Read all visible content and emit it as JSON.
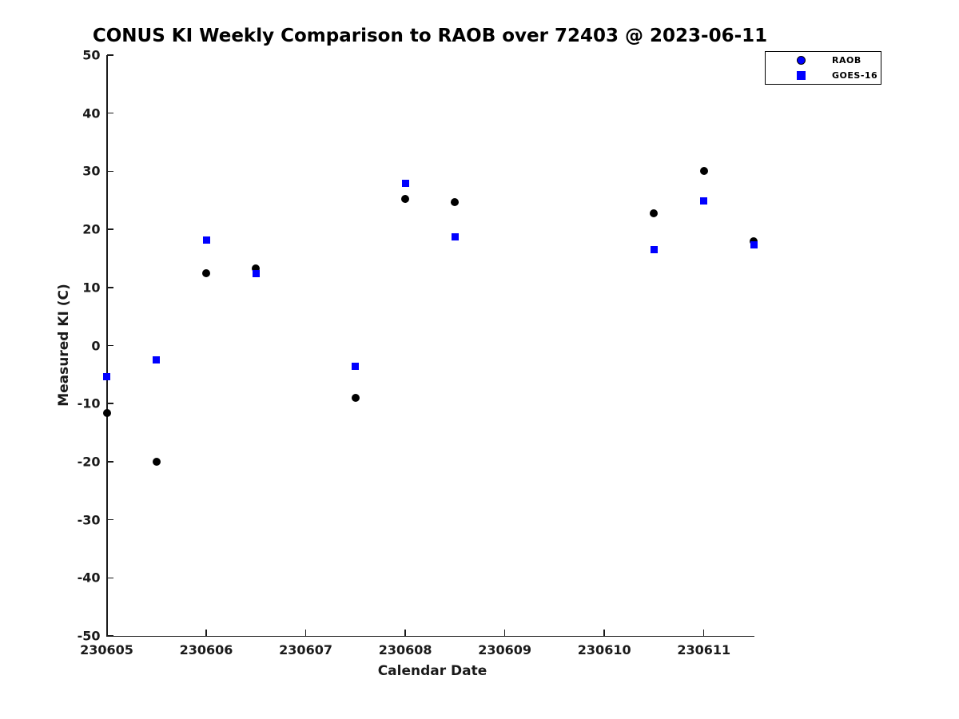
{
  "chart_data": {
    "type": "scatter",
    "title": "CONUS KI Weekly Comparison to RAOB over 72403 @ 2023-06-11",
    "xlabel": "Calendar Date",
    "ylabel": "Measured KI (C)",
    "xlim": [
      230605,
      230611.5
    ],
    "ylim": [
      -50,
      50
    ],
    "xticks": [
      230605,
      230606,
      230607,
      230608,
      230609,
      230610,
      230611
    ],
    "yticks": [
      50,
      40,
      30,
      20,
      10,
      0,
      -10,
      -20,
      -30,
      -40,
      -50
    ],
    "grid": false,
    "legend_position": "top-right-outside",
    "background_color": "#ffffff",
    "axis_color": "#1a1a1a",
    "series": [
      {
        "name": "RAOB",
        "marker": "circle",
        "plot_color": "#000000",
        "legend_fill_color": "#0000FF",
        "legend_edge_color": "#000000",
        "x": [
          230605,
          230605.5,
          230606,
          230606.5,
          230607.5,
          230608,
          230608.5,
          230610.5,
          230611,
          230611.5
        ],
        "y": [
          -11.6,
          -20.0,
          12.5,
          13.3,
          -9.0,
          25.2,
          24.7,
          22.7,
          30.0,
          17.9
        ]
      },
      {
        "name": "GOES-16",
        "marker": "square",
        "plot_color": "#0000FF",
        "legend_fill_color": "#0000FF",
        "legend_edge_color": "#0000FF",
        "x": [
          230605,
          230605.5,
          230606,
          230606.5,
          230607.5,
          230608,
          230608.5,
          230610.5,
          230611,
          230611.5
        ],
        "y": [
          -5.3,
          -2.5,
          18.2,
          12.4,
          -3.6,
          27.9,
          18.7,
          16.5,
          24.9,
          17.3
        ]
      }
    ]
  }
}
